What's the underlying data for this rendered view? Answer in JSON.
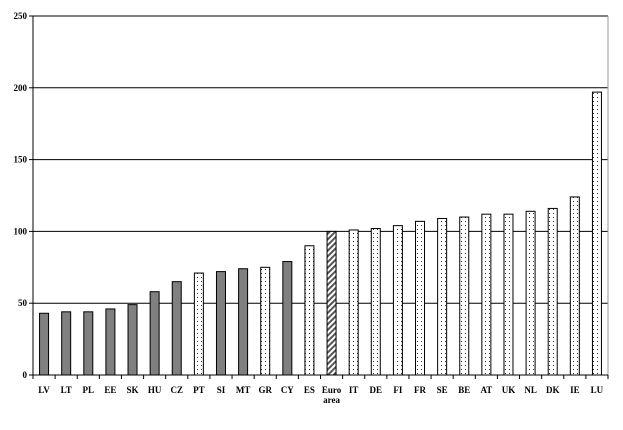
{
  "chart_data": {
    "type": "bar",
    "title": "",
    "xlabel": "",
    "ylabel": "",
    "ylim": [
      0,
      250
    ],
    "yticks": [
      0,
      50,
      100,
      150,
      200,
      250
    ],
    "grid": true,
    "categories": [
      "LV",
      "LT",
      "PL",
      "EE",
      "SK",
      "HU",
      "CZ",
      "PT",
      "SI",
      "MT",
      "GR",
      "CY",
      "ES",
      "Euro area",
      "IT",
      "DE",
      "FI",
      "FR",
      "SE",
      "BE",
      "AT",
      "UK",
      "NL",
      "DK",
      "IE",
      "LU"
    ],
    "values": [
      43,
      44,
      44,
      46,
      49,
      58,
      65,
      71,
      72,
      74,
      75,
      79,
      90,
      100,
      101,
      102,
      104,
      107,
      109,
      110,
      112,
      112,
      114,
      116,
      124,
      197
    ],
    "styles": [
      "solid",
      "solid",
      "solid",
      "solid",
      "solid",
      "solid",
      "solid",
      "dotted",
      "solid",
      "solid",
      "dotted",
      "solid",
      "dotted",
      "hatched",
      "dotted",
      "dotted",
      "dotted",
      "dotted",
      "dotted",
      "dotted",
      "dotted",
      "dotted",
      "dotted",
      "dotted",
      "dotted",
      "dotted"
    ],
    "colors": {
      "solid": "#808080",
      "dotted": "#ffffff",
      "hatched": "#555555"
    }
  }
}
